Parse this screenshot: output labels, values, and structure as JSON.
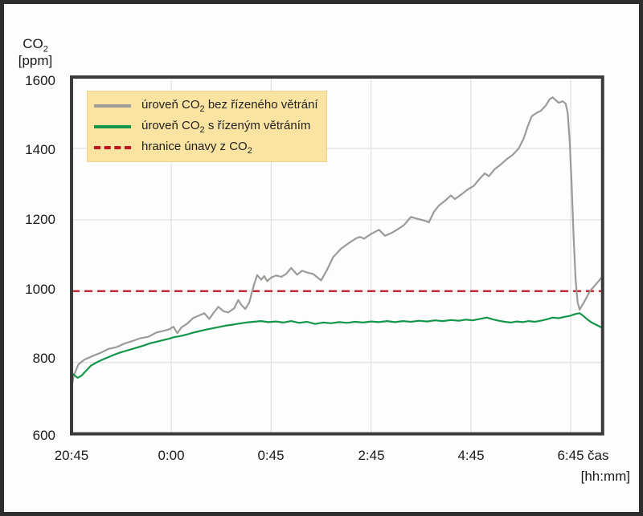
{
  "y_axis": {
    "unit_prefix": "CO",
    "unit_sub": "2",
    "unit_bracket": "[ppm]",
    "ticks": [
      "1600",
      "1400",
      "1200",
      "1000",
      "800",
      "600"
    ]
  },
  "x_axis": {
    "ticks": [
      "20:45",
      "0:00",
      "0:45",
      "2:45",
      "4:45",
      "6:45"
    ],
    "unit": "čas",
    "unit_bracket": "[hh:mm]"
  },
  "legend": {
    "items": [
      {
        "prefix": "úroveň CO",
        "sub": "2",
        "suffix": " bez řízeného větrání",
        "swatch": "solid-gray"
      },
      {
        "prefix": "úroveň CO",
        "sub": "2",
        "suffix": " s řízeným větráním",
        "swatch": "solid-green"
      },
      {
        "prefix": "hranice únavy z CO",
        "sub": "2",
        "suffix": "",
        "swatch": "dashed-red"
      }
    ]
  },
  "colors": {
    "series_no_ventilation": "#9b9b97",
    "series_ventilation": "#12964a",
    "threshold": "#c41420",
    "grid": "#e2e2e2",
    "plot_border": "#3a3a3a",
    "legend_bg": "#fbe3a2"
  },
  "chart_data": {
    "type": "line",
    "title": "",
    "ylabel": "CO2 [ppm]",
    "xlabel": "čas [hh:mm]",
    "ylim": [
      600,
      1600
    ],
    "y_ticks": [
      600,
      800,
      1000,
      1200,
      1400,
      1600
    ],
    "x_tick_labels": [
      "20:45",
      "0:00",
      "0:45",
      "2:45",
      "4:45",
      "6:45"
    ],
    "x_axis_units": "tick-units: 0=20:45 (left edge), 1=0:00, 2=0:45, 3=2:45, 4=4:45, 5=6:45; plot extends to 5.32",
    "grid": true,
    "legend_position": "top-left",
    "threshold": {
      "name": "hranice únavy z CO2",
      "value": 1000,
      "color": "#c41420",
      "style": "dashed"
    },
    "series": [
      {
        "name": "úroveň CO2 bez řízeného větrání",
        "color": "#9b9b97",
        "points": [
          [
            0,
            728
          ],
          [
            0.02,
            762
          ],
          [
            0.07,
            795
          ],
          [
            0.13,
            808
          ],
          [
            0.21,
            818
          ],
          [
            0.29,
            827
          ],
          [
            0.37,
            838
          ],
          [
            0.45,
            843
          ],
          [
            0.53,
            853
          ],
          [
            0.61,
            860
          ],
          [
            0.69,
            868
          ],
          [
            0.77,
            872
          ],
          [
            0.85,
            884
          ],
          [
            0.93,
            889
          ],
          [
            0.98,
            893
          ],
          [
            1.02,
            900
          ],
          [
            1.06,
            882
          ],
          [
            1.1,
            898
          ],
          [
            1.16,
            909
          ],
          [
            1.22,
            925
          ],
          [
            1.28,
            932
          ],
          [
            1.33,
            938
          ],
          [
            1.38,
            922
          ],
          [
            1.42,
            938
          ],
          [
            1.47,
            956
          ],
          [
            1.52,
            944
          ],
          [
            1.57,
            940
          ],
          [
            1.63,
            952
          ],
          [
            1.67,
            975
          ],
          [
            1.7,
            962
          ],
          [
            1.74,
            950
          ],
          [
            1.78,
            968
          ],
          [
            1.8,
            990
          ],
          [
            1.83,
            1020
          ],
          [
            1.86,
            1045
          ],
          [
            1.9,
            1032
          ],
          [
            1.93,
            1042
          ],
          [
            1.96,
            1028
          ],
          [
            2.0,
            1038
          ],
          [
            2.05,
            1044
          ],
          [
            2.1,
            1040
          ],
          [
            2.15,
            1048
          ],
          [
            2.2,
            1065
          ],
          [
            2.26,
            1046
          ],
          [
            2.31,
            1057
          ],
          [
            2.36,
            1052
          ],
          [
            2.42,
            1048
          ],
          [
            2.5,
            1030
          ],
          [
            2.56,
            1060
          ],
          [
            2.62,
            1095
          ],
          [
            2.7,
            1119
          ],
          [
            2.78,
            1135
          ],
          [
            2.85,
            1148
          ],
          [
            2.89,
            1152
          ],
          [
            2.93,
            1147
          ],
          [
            3.0,
            1160
          ],
          [
            3.08,
            1172
          ],
          [
            3.14,
            1155
          ],
          [
            3.2,
            1162
          ],
          [
            3.26,
            1172
          ],
          [
            3.33,
            1185
          ],
          [
            3.4,
            1208
          ],
          [
            3.46,
            1203
          ],
          [
            3.53,
            1198
          ],
          [
            3.58,
            1193
          ],
          [
            3.63,
            1222
          ],
          [
            3.68,
            1240
          ],
          [
            3.74,
            1253
          ],
          [
            3.8,
            1268
          ],
          [
            3.84,
            1258
          ],
          [
            3.9,
            1270
          ],
          [
            3.97,
            1285
          ],
          [
            4.03,
            1295
          ],
          [
            4.08,
            1312
          ],
          [
            4.14,
            1330
          ],
          [
            4.18,
            1322
          ],
          [
            4.24,
            1342
          ],
          [
            4.3,
            1355
          ],
          [
            4.36,
            1370
          ],
          [
            4.42,
            1382
          ],
          [
            4.48,
            1400
          ],
          [
            4.53,
            1428
          ],
          [
            4.57,
            1462
          ],
          [
            4.61,
            1490
          ],
          [
            4.66,
            1500
          ],
          [
            4.7,
            1505
          ],
          [
            4.75,
            1520
          ],
          [
            4.79,
            1538
          ],
          [
            4.82,
            1543
          ],
          [
            4.85,
            1535
          ],
          [
            4.88,
            1528
          ],
          [
            4.92,
            1532
          ],
          [
            4.95,
            1525
          ],
          [
            4.97,
            1500
          ],
          [
            4.99,
            1420
          ],
          [
            5.01,
            1300
          ],
          [
            5.03,
            1150
          ],
          [
            5.05,
            1030
          ],
          [
            5.07,
            968
          ],
          [
            5.09,
            948
          ],
          [
            5.11,
            958
          ],
          [
            5.14,
            972
          ],
          [
            5.17,
            988
          ],
          [
            5.2,
            1002
          ],
          [
            5.24,
            1015
          ],
          [
            5.28,
            1028
          ],
          [
            5.32,
            1042
          ]
        ]
      },
      {
        "name": "úroveň CO2 s řízeným větráním",
        "color": "#12964a",
        "points": [
          [
            0,
            770
          ],
          [
            0.03,
            764
          ],
          [
            0.06,
            757
          ],
          [
            0.1,
            763
          ],
          [
            0.14,
            775
          ],
          [
            0.19,
            790
          ],
          [
            0.25,
            800
          ],
          [
            0.31,
            808
          ],
          [
            0.37,
            815
          ],
          [
            0.43,
            822
          ],
          [
            0.49,
            828
          ],
          [
            0.55,
            833
          ],
          [
            0.61,
            838
          ],
          [
            0.67,
            843
          ],
          [
            0.73,
            848
          ],
          [
            0.79,
            854
          ],
          [
            0.85,
            858
          ],
          [
            0.91,
            862
          ],
          [
            0.97,
            866
          ],
          [
            1.03,
            871
          ],
          [
            1.09,
            874
          ],
          [
            1.15,
            878
          ],
          [
            1.21,
            883
          ],
          [
            1.27,
            887
          ],
          [
            1.33,
            891
          ],
          [
            1.4,
            895
          ],
          [
            1.47,
            899
          ],
          [
            1.54,
            903
          ],
          [
            1.61,
            906
          ],
          [
            1.68,
            909
          ],
          [
            1.75,
            912
          ],
          [
            1.82,
            914
          ],
          [
            1.9,
            916
          ],
          [
            1.97,
            913
          ],
          [
            2.05,
            915
          ],
          [
            2.12,
            912
          ],
          [
            2.2,
            916
          ],
          [
            2.28,
            911
          ],
          [
            2.36,
            914
          ],
          [
            2.44,
            908
          ],
          [
            2.52,
            912
          ],
          [
            2.6,
            910
          ],
          [
            2.68,
            913
          ],
          [
            2.76,
            911
          ],
          [
            2.84,
            914
          ],
          [
            2.92,
            912
          ],
          [
            3.0,
            915
          ],
          [
            3.08,
            913
          ],
          [
            3.16,
            916
          ],
          [
            3.24,
            913
          ],
          [
            3.32,
            916
          ],
          [
            3.4,
            914
          ],
          [
            3.48,
            917
          ],
          [
            3.56,
            915
          ],
          [
            3.64,
            918
          ],
          [
            3.72,
            916
          ],
          [
            3.8,
            919
          ],
          [
            3.88,
            917
          ],
          [
            3.95,
            920
          ],
          [
            4.02,
            918
          ],
          [
            4.09,
            922
          ],
          [
            4.16,
            926
          ],
          [
            4.22,
            921
          ],
          [
            4.28,
            917
          ],
          [
            4.34,
            914
          ],
          [
            4.4,
            912
          ],
          [
            4.46,
            915
          ],
          [
            4.52,
            913
          ],
          [
            4.58,
            916
          ],
          [
            4.64,
            914
          ],
          [
            4.7,
            917
          ],
          [
            4.76,
            921
          ],
          [
            4.82,
            926
          ],
          [
            4.88,
            924
          ],
          [
            4.94,
            928
          ],
          [
            5.0,
            931
          ],
          [
            5.05,
            936
          ],
          [
            5.09,
            938
          ],
          [
            5.13,
            930
          ],
          [
            5.17,
            920
          ],
          [
            5.21,
            912
          ],
          [
            5.26,
            905
          ],
          [
            5.32,
            897
          ]
        ]
      }
    ]
  }
}
